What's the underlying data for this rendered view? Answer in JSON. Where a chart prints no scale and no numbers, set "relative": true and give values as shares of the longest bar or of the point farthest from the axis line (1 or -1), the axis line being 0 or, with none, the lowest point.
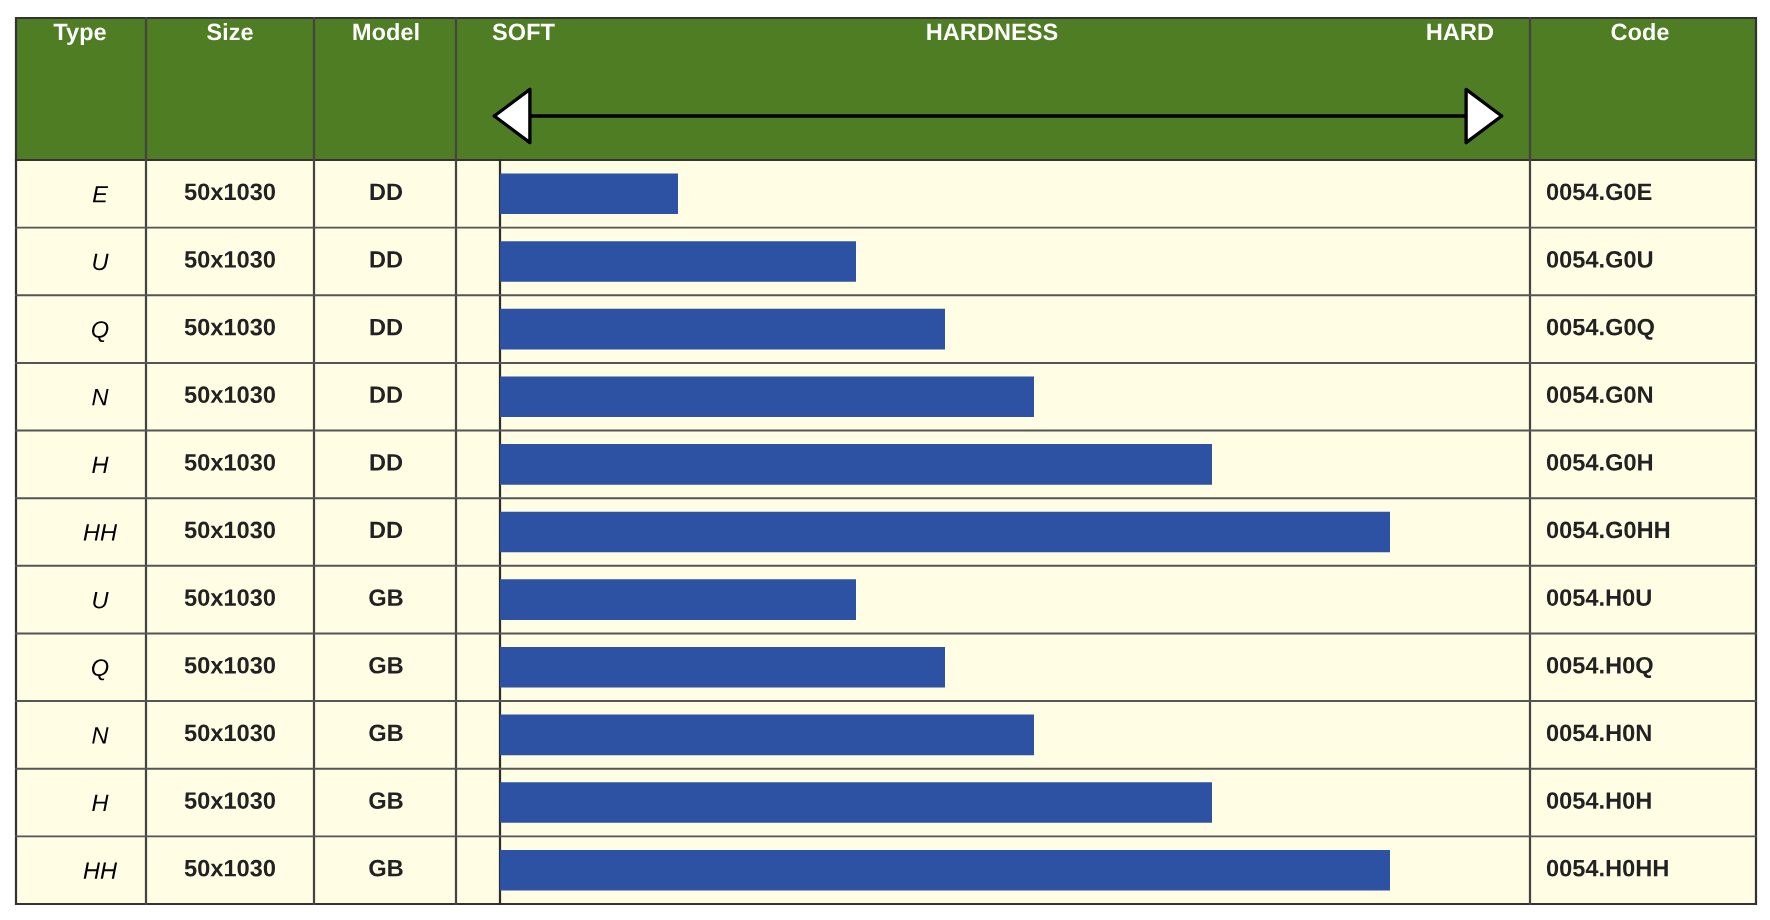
{
  "chart_data": {
    "type": "bar",
    "orientation": "horizontal",
    "relative": true,
    "ylabel": "Type",
    "categories": [
      "E",
      "U",
      "Q",
      "N",
      "H",
      "HH",
      "U",
      "Q",
      "N",
      "H",
      "HH"
    ],
    "values": [
      0.2,
      0.4,
      0.5,
      0.6,
      0.8,
      1.0,
      0.4,
      0.5,
      0.6,
      0.8,
      1.0
    ],
    "color": "#2d52a3",
    "annotations": [
      "Size",
      "Model",
      "Code",
      "SOFT",
      "HARD",
      "HARDNESS",
      "50x1030",
      "DD",
      "0054.G0E",
      "50x1030",
      "DD",
      "0054.G0U",
      "50x1030",
      "DD",
      "0054.G0Q",
      "50x1030",
      "DD",
      "0054.G0N",
      "50x1030",
      "DD",
      "0054.G0H",
      "50x1030",
      "DD",
      "0054.G0HH",
      "50x1030",
      "GB",
      "0054.H0U",
      "50x1030",
      "GB",
      "0054.H0Q",
      "50x1030",
      "GB",
      "0054.H0N",
      "50x1030",
      "GB",
      "0054.H0H",
      "50x1030",
      "GB",
      "0054.H0HH"
    ],
    "grid": false
  }
}
